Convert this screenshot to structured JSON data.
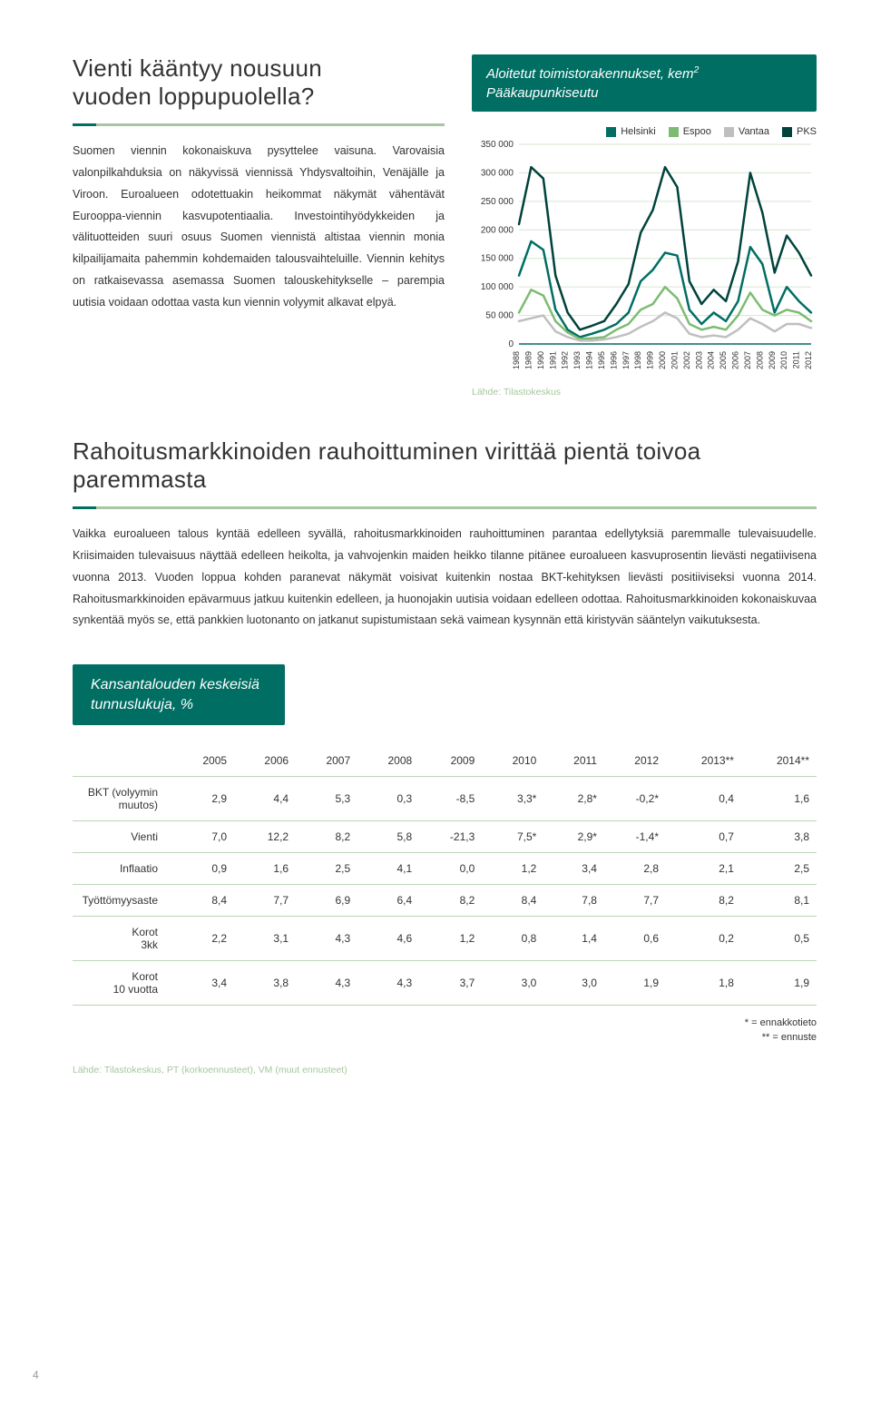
{
  "section1": {
    "title_line1": "Vienti kääntyy nousuun",
    "title_line2": "vuoden loppupuolella?",
    "body": "Suomen viennin kokonaiskuva pysyttelee vaisuna. Varovaisia valonpilkahduksia on näkyvissä viennissä Yhdysvaltoihin, Venäjälle ja Viroon. Euroalueen odotettuakin heikommat näkymät vähentävät Eurooppa-viennin kasvupotentiaalia. Investointihyödykkeiden ja välituotteiden suuri osuus Suomen viennistä altistaa viennin monia kilpailijamaita pahemmin kohdemaiden talousvaihteluille. Viennin kehitys on ratkaisevassa asemassa Suomen talouskehitykselle – parempia uutisia voidaan odottaa vasta kun viennin volyymit alkavat elpyä."
  },
  "chart": {
    "header_line1": "Aloitetut toimistorakennukset, kem",
    "header_line2": "Pääkaupunkiseutu",
    "legend": [
      {
        "label": "Helsinki",
        "color": "#006e63"
      },
      {
        "label": "Espoo",
        "color": "#7dbb72"
      },
      {
        "label": "Vantaa",
        "color": "#bfbfbf"
      },
      {
        "label": "PKS",
        "color": "#00433b"
      }
    ],
    "ylim": [
      0,
      350000
    ],
    "ytick_step": 50000,
    "years": [
      "1988",
      "1989",
      "1990",
      "1991",
      "1992",
      "1993",
      "1994",
      "1995",
      "1996",
      "1997",
      "1998",
      "1999",
      "2000",
      "2001",
      "2002",
      "2003",
      "2004",
      "2005",
      "2006",
      "2007",
      "2008",
      "2009",
      "2010",
      "2011",
      "2012"
    ],
    "series": {
      "PKS": [
        210000,
        310000,
        290000,
        120000,
        55000,
        25000,
        32000,
        40000,
        70000,
        105000,
        195000,
        235000,
        310000,
        275000,
        110000,
        70000,
        95000,
        75000,
        145000,
        300000,
        230000,
        125000,
        190000,
        160000,
        120000
      ],
      "Helsinki": [
        120000,
        180000,
        165000,
        60000,
        25000,
        12000,
        18000,
        25000,
        35000,
        55000,
        110000,
        130000,
        160000,
        155000,
        60000,
        35000,
        55000,
        40000,
        75000,
        170000,
        140000,
        55000,
        100000,
        75000,
        55000
      ],
      "Espoo": [
        55000,
        95000,
        85000,
        40000,
        20000,
        9000,
        10000,
        12000,
        25000,
        35000,
        60000,
        70000,
        100000,
        80000,
        35000,
        25000,
        30000,
        25000,
        50000,
        90000,
        60000,
        50000,
        60000,
        55000,
        40000
      ],
      "Vantaa": [
        40000,
        45000,
        50000,
        22000,
        12000,
        6000,
        6000,
        8000,
        12000,
        18000,
        30000,
        40000,
        55000,
        45000,
        18000,
        12000,
        15000,
        12000,
        25000,
        45000,
        35000,
        22000,
        35000,
        35000,
        28000
      ]
    },
    "colors": {
      "PKS": "#00433b",
      "Helsinki": "#006e63",
      "Espoo": "#7dbb72",
      "Vantaa": "#bfbfbf"
    },
    "line_width": 2.5,
    "grid_color": "#d6e5d2",
    "axis_color": "#006e63",
    "label_font_size": 9,
    "ylabel_font_size": 10,
    "source": "Lähde: Tilastokeskus"
  },
  "section2": {
    "title_line1": "Rahoitusmarkkinoiden rauhoittuminen virittää pientä toivoa",
    "title_line2": "paremmasta",
    "body": "Vaikka euroalueen talous kyntää edelleen syvällä, rahoitusmarkkinoiden rauhoittuminen parantaa edellytyksiä paremmalle tulevaisuudelle. Kriisimaiden tulevaisuus näyttää edelleen heikolta, ja vahvojenkin maiden heikko tilanne pitänee euroalueen kasvuprosentin lievästi negatiivisena vuonna 2013. Vuoden loppua kohden paranevat näkymät voisivat kuitenkin nostaa BKT-kehityksen lievästi positiiviseksi vuonna 2014. Rahoitusmarkkinoiden epävarmuus jatkuu kuitenkin edelleen, ja huonojakin uutisia voidaan edelleen odottaa. Rahoitusmarkkinoiden kokonaiskuvaa synkentää myös se, että pankkien luotonanto on jatkanut supistumistaan sekä vaimean kysynnän että kiristyvän sääntelyn vaikutuksesta."
  },
  "kpi": {
    "panel_title_line1": "Kansantalouden keskeisiä",
    "panel_title_line2": "tunnuslukuja, %",
    "years": [
      "2005",
      "2006",
      "2007",
      "2008",
      "2009",
      "2010",
      "2011",
      "2012",
      "2013**",
      "2014**"
    ],
    "rows": [
      {
        "label": "BKT (volyymin muutos)",
        "values": [
          "2,9",
          "4,4",
          "5,3",
          "0,3",
          "-8,5",
          "3,3*",
          "2,8*",
          "-0,2*",
          "0,4",
          "1,6"
        ]
      },
      {
        "label": "Vienti",
        "values": [
          "7,0",
          "12,2",
          "8,2",
          "5,8",
          "-21,3",
          "7,5*",
          "2,9*",
          "-1,4*",
          "0,7",
          "3,8"
        ]
      },
      {
        "label": "Inflaatio",
        "values": [
          "0,9",
          "1,6",
          "2,5",
          "4,1",
          "0,0",
          "1,2",
          "3,4",
          "2,8",
          "2,1",
          "2,5"
        ]
      },
      {
        "label": "Työttömyysaste",
        "values": [
          "8,4",
          "7,7",
          "6,9",
          "6,4",
          "8,2",
          "8,4",
          "7,8",
          "7,7",
          "8,2",
          "8,1"
        ]
      },
      {
        "label": "Korot 3kk",
        "values": [
          "2,2",
          "3,1",
          "4,3",
          "4,6",
          "1,2",
          "0,8",
          "1,4",
          "0,6",
          "0,2",
          "0,5"
        ]
      },
      {
        "label": "Korot 10 vuotta",
        "values": [
          "3,4",
          "3,8",
          "4,3",
          "4,3",
          "3,7",
          "3,0",
          "3,0",
          "1,9",
          "1,8",
          "1,9"
        ]
      }
    ],
    "footnote1": "* = ennakkotieto",
    "footnote2": "** = ennuste",
    "source": "Lähde: Tilastokeskus, PT (korkoennusteet), VM (muut ennusteet)"
  },
  "page_number": "4"
}
